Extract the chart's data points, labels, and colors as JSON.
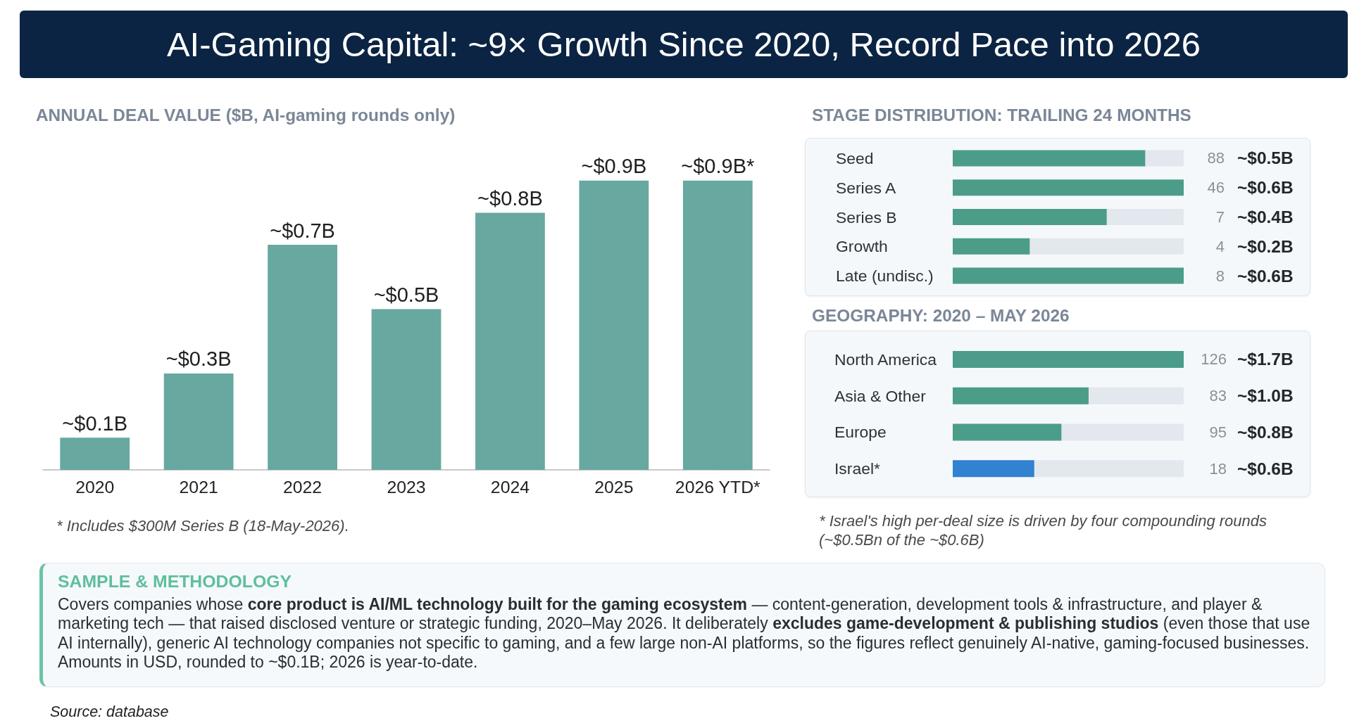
{
  "chart_data": [
    {
      "type": "other",
      "title": "AI-Gaming Capital: ~9× Growth Since 2020, Record Pace into 2026"
    },
    {
      "type": "bar",
      "title": "ANNUAL DEAL VALUE ($B, AI-gaming rounds only)",
      "categories": [
        "2020",
        "2021",
        "2022",
        "2023",
        "2024",
        "2025",
        "2026 YTD*"
      ],
      "values": [
        0.1,
        0.3,
        0.7,
        0.5,
        0.8,
        0.9,
        0.9
      ],
      "color": "#67a8a0",
      "value_labels": [
        "~$0.1B",
        "~$0.3B",
        "~$0.7B",
        "~$0.5B",
        "~$0.8B",
        "~$0.9B",
        "~$0.9B*"
      ],
      "annotations": [
        "* Includes $300M Series B (18-May-2026)."
      ]
    },
    {
      "type": "bar",
      "orientation": "horizontal",
      "title": "STAGE DISTRIBUTION: TRAILING 24 MONTHS",
      "categories": [
        "Seed",
        "Series A",
        "Series B",
        "Growth",
        "Late (undisc.)"
      ],
      "values": [
        0.5,
        0.6,
        0.4,
        0.2,
        0.6
      ],
      "color": "#4b9d8a",
      "value_labels": [
        "~$0.5B",
        "~$0.6B",
        "~$0.4B",
        "~$0.2B",
        "~$0.6B"
      ],
      "annotations": [
        "88",
        "46",
        "7",
        "4",
        "8"
      ]
    },
    {
      "type": "bar",
      "orientation": "horizontal",
      "title": "GEOGRAPHY: 2020 – MAY 2026",
      "categories": [
        "North America",
        "Asia & Other",
        "Europe",
        "Israel*"
      ],
      "values": [
        1.7,
        1.0,
        0.8,
        0.6
      ],
      "colors": [
        "#4b9d8a",
        "#4b9d8a",
        "#4b9d8a",
        "#3182d0"
      ],
      "value_labels": [
        "~$1.7B",
        "~$1.0B",
        "~$0.8B",
        "~$0.6B"
      ],
      "annotations": [
        "126",
        "83",
        "95",
        "18",
        "* Israel's high per-deal size is driven by four compounding rounds (~$0.5Bn of the ~$0.6B)"
      ]
    },
    {
      "type": "other",
      "title": "SAMPLE & METHODOLOGY",
      "annotations": [
        "Covers companies whose ",
        "core product is AI/ML technology built for the gaming ecosystem",
        " — content-generation, development tools & infrastructure, and player & marketing tech — that raised disclosed venture or strategic funding, 2020–May 2026. It deliberately ",
        "excludes game-development & publishing studios",
        " (even those that use AI internally), generic AI technology companies not specific to gaming, and a few large non-AI platforms, so the figures reflect genuinely AI-native, gaming-focused businesses. Amounts in USD, rounded to ~$0.1B; 2026 is year-to-date."
      ]
    },
    {
      "type": "other",
      "annotations": [
        "Source: database"
      ]
    }
  ]
}
